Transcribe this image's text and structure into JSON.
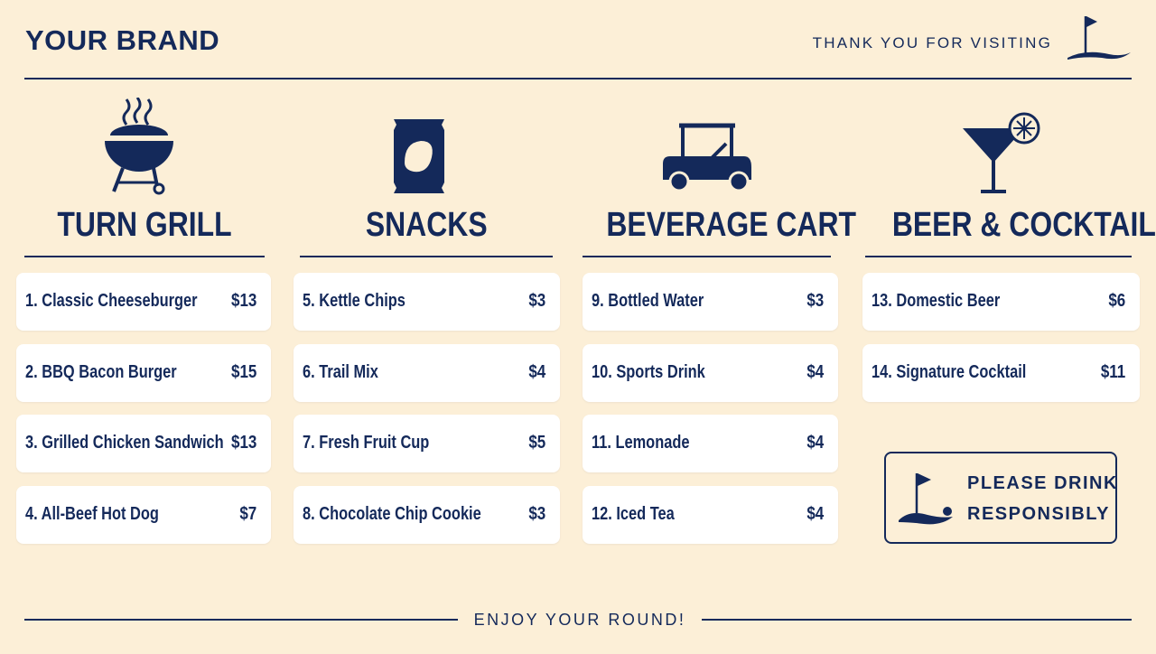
{
  "header": {
    "brand": "YOUR BRAND",
    "tagline": "THANK YOU FOR VISITING"
  },
  "sections": [
    {
      "title": "TURN GRILL",
      "items": [
        {
          "name": "1. Classic Cheeseburger",
          "price": "$13"
        },
        {
          "name": "2. BBQ Bacon Burger",
          "price": "$15"
        },
        {
          "name": "3. Grilled Chicken Sandwich",
          "price": "$13"
        },
        {
          "name": "4. All-Beef Hot Dog",
          "price": "$7"
        }
      ]
    },
    {
      "title": "SNACKS",
      "items": [
        {
          "name": "5. Kettle Chips",
          "price": "$3"
        },
        {
          "name": "6. Trail Mix",
          "price": "$4"
        },
        {
          "name": "7. Fresh Fruit Cup",
          "price": "$5"
        },
        {
          "name": "8. Chocolate Chip Cookie",
          "price": "$3"
        }
      ]
    },
    {
      "title": "BEVERAGE CART",
      "items": [
        {
          "name": "9. Bottled Water",
          "price": "$3"
        },
        {
          "name": "10. Sports Drink",
          "price": "$4"
        },
        {
          "name": "11. Lemonade",
          "price": "$4"
        },
        {
          "name": "12. Iced Tea",
          "price": "$4"
        }
      ]
    },
    {
      "title": "BEER & COCKTAILS",
      "items": [
        {
          "name": "13. Domestic Beer",
          "price": "$6"
        },
        {
          "name": "14. Signature Cocktail",
          "price": "$11"
        }
      ]
    }
  ],
  "notice": {
    "lines": [
      "PLEASE DRINK",
      "RESPONSIBLY"
    ]
  },
  "footer": "ENJOY YOUR ROUND!"
}
